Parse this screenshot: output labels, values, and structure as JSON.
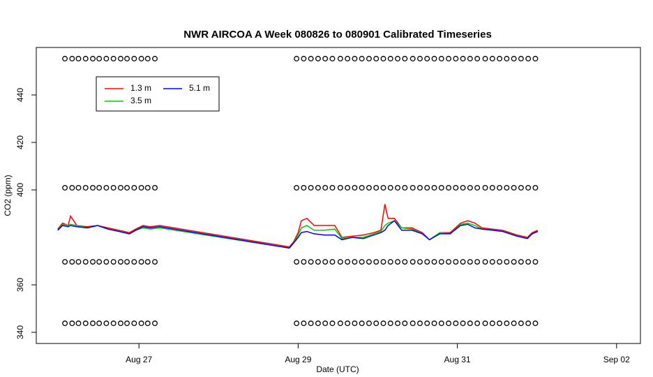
{
  "chart_data": {
    "type": "line",
    "title": "NWR AIRCOA A  Week 080826 to 080901  Calibrated Timeseries",
    "x_label": "Date (UTC)",
    "y_label": "CO2 (ppm)",
    "xlim": [
      25.71,
      33.3
    ],
    "ylim": [
      335.3,
      460
    ],
    "xticks": [
      {
        "value": 27,
        "label": "Aug 27"
      },
      {
        "value": 29,
        "label": "Aug 29"
      },
      {
        "value": 31,
        "label": "Aug 31"
      },
      {
        "value": 33,
        "label": "Sep 02"
      }
    ],
    "yticks": [
      340,
      360,
      400,
      420,
      440
    ],
    "x": [
      25.98,
      26.04,
      26.11,
      26.14,
      26.22,
      26.35,
      26.48,
      26.61,
      26.75,
      26.88,
      26.96,
      27.05,
      27.14,
      27.26,
      28.89,
      28.94,
      29.0,
      29.04,
      29.11,
      29.2,
      29.33,
      29.46,
      29.55,
      29.68,
      29.82,
      29.95,
      30.04,
      30.09,
      30.13,
      30.21,
      30.3,
      30.43,
      30.56,
      30.65,
      30.78,
      30.91,
      31.04,
      31.13,
      31.22,
      31.31,
      31.44,
      31.57,
      31.75,
      31.88,
      31.94,
      32.01
    ],
    "series": [
      {
        "name": "1.3 m",
        "color": "#ff0000",
        "values": [
          383.5,
          386,
          385,
          389,
          385,
          384.5,
          385,
          384,
          383,
          382,
          383.5,
          385,
          384.5,
          385,
          376,
          378,
          382,
          387,
          388,
          385,
          385,
          385,
          380,
          380.5,
          381,
          382,
          383,
          394,
          388,
          388,
          384,
          384,
          382,
          379,
          382,
          382,
          386,
          387,
          386,
          384,
          383.5,
          383,
          381,
          380,
          382,
          383
        ]
      },
      {
        "name": "3.5 m",
        "color": "#00cd00",
        "values": [
          383,
          385.5,
          385,
          385.5,
          385,
          384,
          385,
          383.5,
          382.5,
          381.5,
          383,
          384,
          383.5,
          384,
          375.5,
          377.5,
          381,
          384,
          385,
          383,
          383,
          383.5,
          379.5,
          380,
          380,
          381.5,
          382.5,
          385,
          386,
          387,
          384,
          383.5,
          381.5,
          379,
          382,
          381.5,
          385.5,
          386,
          385,
          383.5,
          383,
          382.5,
          380.5,
          379.5,
          381.5,
          382.5
        ]
      },
      {
        "name": "5.1 m",
        "color": "#0000ff",
        "values": [
          383,
          385,
          384.5,
          385,
          384.5,
          384,
          385,
          383.5,
          382.5,
          381.5,
          383,
          384.5,
          384,
          384.5,
          375.5,
          377.5,
          380,
          382,
          382.5,
          381.5,
          381,
          381,
          379,
          380,
          379.5,
          381,
          382,
          383,
          385,
          387,
          383,
          383,
          381.5,
          379,
          381.5,
          381.5,
          385,
          385.5,
          384,
          383.5,
          383,
          382.5,
          380.5,
          379.5,
          381.5,
          382.5
        ]
      }
    ],
    "calibration": {
      "levels": [
        455.3,
        400.9,
        369.7,
        343.8
      ],
      "x": [
        26.07,
        26.16,
        26.24,
        26.33,
        26.42,
        26.5,
        26.59,
        26.68,
        26.77,
        26.85,
        26.94,
        27.03,
        27.11,
        27.2,
        28.98,
        29.07,
        29.16,
        29.25,
        29.34,
        29.43,
        29.53,
        29.62,
        29.71,
        29.8,
        29.89,
        29.98,
        30.07,
        30.16,
        30.25,
        30.34,
        30.44,
        30.53,
        30.62,
        30.71,
        30.8,
        30.89,
        30.98,
        31.07,
        31.16,
        31.25,
        31.35,
        31.44,
        31.53,
        31.62,
        31.71,
        31.8,
        31.89,
        31.98
      ]
    }
  }
}
